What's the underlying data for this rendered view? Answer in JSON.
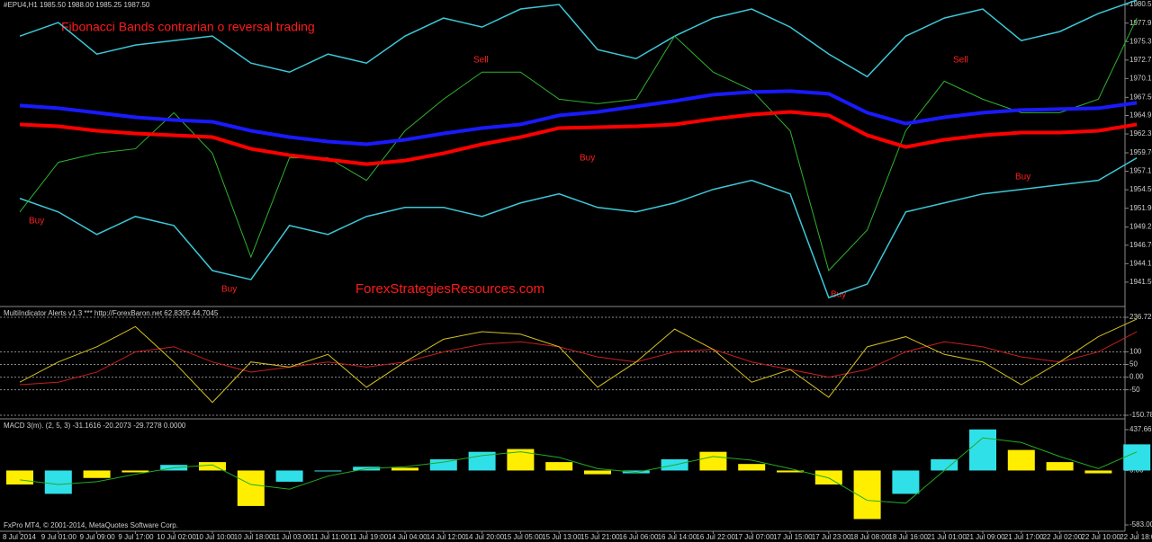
{
  "chart_data": [
    {
      "type": "line",
      "header": "#EPU4,H1  1985.50 1988.00 1985.25 1987.50",
      "title": "Fibonacci Bands contrarian  o reversal trading",
      "watermark": "ForexStrategiesResources.com",
      "annotations": [
        "Buy",
        "Buy",
        "Buy",
        "Buy",
        "Buy",
        "Sell",
        "Sell"
      ],
      "ylim": [
        1938.2,
        1981.2
      ],
      "yticks": [
        1980.55,
        1977.95,
        1975.35,
        1972.75,
        1970.15,
        {
          "value": 1967.5,
          "label": "1967.50"
        },
        1964.95,
        1962.35,
        {
          "value": 1959.7,
          "label": "1959.70"
        },
        1957.1,
        {
          "value": 1954.5,
          "label": "1954.50"
        },
        {
          "value": 1951.9,
          "label": "1951.90"
        },
        1949.25,
        {
          "value": 1946.7,
          "label": "1946.70"
        },
        1944.1,
        {
          "value": 1941.5,
          "label": "1941.50"
        }
      ],
      "series": [
        {
          "color": "#3cc8d8",
          "width": 1.5,
          "values": [
            1976.12,
            1978.03,
            1973.59,
            1974.86,
            1975.49,
            1976.12,
            1972.32,
            1971.05,
            1973.59,
            1972.32,
            1976.12,
            1978.66,
            1977.39,
            1979.93,
            1980.57,
            1974.22,
            1972.95,
            1976.12,
            1978.66,
            1979.93,
            1977.39,
            1973.59,
            1970.41,
            1976.12,
            1978.66,
            1979.93,
            1975.49,
            1976.76,
            1979.3,
            1981.2
          ]
        },
        {
          "color": "#3cc8d8",
          "width": 1.5,
          "values": [
            1953.28,
            1951.38,
            1948.21,
            1950.74,
            1949.47,
            1943.13,
            1941.86,
            1949.47,
            1948.21,
            1950.74,
            1952.01,
            1952.01,
            1950.74,
            1952.65,
            1953.92,
            1952.01,
            1951.38,
            1952.65,
            1954.55,
            1955.82,
            1953.92,
            1939.32,
            1941.23,
            1951.38,
            1952.65,
            1953.92,
            1954.55,
            1955.19,
            1955.82,
            1958.99
          ]
        },
        {
          "color": "#2db32d",
          "width": 1,
          "values": [
            1951.38,
            1958.36,
            1959.63,
            1960.26,
            1965.34,
            1959.63,
            1945.03,
            1958.99,
            1958.99,
            1955.82,
            1962.8,
            1967.24,
            1971.05,
            1971.05,
            1967.24,
            1966.61,
            1967.24,
            1976.12,
            1971.05,
            1968.51,
            1962.8,
            1943.13,
            1948.84,
            1962.8,
            1969.78,
            1967.24,
            1965.34,
            1965.34,
            1967.24,
            1978.66
          ]
        },
        {
          "color": "#1a1aff",
          "width": 4,
          "values": [
            1966.35,
            1965.97,
            1965.34,
            1964.7,
            1964.32,
            1964.07,
            1962.8,
            1961.91,
            1961.28,
            1960.9,
            1961.53,
            1962.42,
            1963.18,
            1963.69,
            1964.96,
            1965.46,
            1966.23,
            1966.99,
            1967.88,
            1968.26,
            1968.38,
            1968,
            1965.34,
            1963.81,
            1964.7,
            1965.34,
            1965.72,
            1965.85,
            1965.97,
            1966.73
          ]
        },
        {
          "color": "#ff0000",
          "width": 4,
          "values": [
            1963.69,
            1963.43,
            1962.8,
            1962.42,
            1962.17,
            1961.91,
            1960.26,
            1959.37,
            1958.74,
            1958.1,
            1958.61,
            1959.63,
            1960.9,
            1961.91,
            1963.18,
            1963.31,
            1963.43,
            1963.69,
            1964.45,
            1965.08,
            1965.46,
            1964.96,
            1962.17,
            1960.52,
            1961.53,
            1962.17,
            1962.55,
            1962.55,
            1962.8,
            1963.69
          ]
        }
      ]
    },
    {
      "type": "line",
      "header": "MultiIndicator Alerts v1.3 *** http://ForexBaron.net 62.8305 44.7045",
      "ylim": [
        -150.789,
        236.7263
      ],
      "yticks": [
        236.7263,
        100,
        50,
        {
          "value": 0,
          "label": "0.00"
        },
        -50,
        -150.789
      ],
      "grid": true,
      "series": [
        {
          "color": "#c81e1e",
          "width": 1,
          "values": [
            -30,
            -20,
            20,
            100,
            120,
            60,
            20,
            40,
            60,
            40,
            60,
            100,
            130,
            140,
            120,
            80,
            60,
            100,
            110,
            60,
            30,
            0,
            30,
            100,
            140,
            120,
            80,
            60,
            100,
            180
          ]
        },
        {
          "color": "#d4c020",
          "width": 1,
          "values": [
            -20,
            60,
            120,
            200,
            60,
            -100,
            60,
            40,
            90,
            -40,
            60,
            150,
            180,
            170,
            120,
            -40,
            60,
            190,
            110,
            -20,
            30,
            -80,
            120,
            160,
            90,
            60,
            -30,
            60,
            160,
            230
          ]
        }
      ]
    },
    {
      "type": "bar",
      "header": "MACD 3(m). (2, 5, 3) -31.1616 -20.2073 -29.7278 0.0000",
      "footer": "FxPro MT4, © 2001-2014, MetaQuotes Software Corp.",
      "ylim": [
        -583.001,
        437.6638
      ],
      "yticks": [
        437.6638,
        {
          "value": 0,
          "label": "0.00"
        },
        -583.001
      ],
      "categories": [
        "8 Jul 2014",
        "9 Jul 01:00",
        "9 Jul 09:00",
        "9 Jul 17:00",
        "10 Jul 02:00",
        "10 Jul 10:00",
        "10 Jul 18:00",
        "11 Jul 03:00",
        "11 Jul 11:00",
        "11 Jul 19:00",
        "14 Jul 04:00",
        "14 Jul 12:00",
        "14 Jul 20:00",
        "15 Jul 05:00",
        "15 Jul 13:00",
        "15 Jul 21:00",
        "16 Jul 06:00",
        "16 Jul 14:00",
        "16 Jul 22:00",
        "17 Jul 07:00",
        "17 Jul 15:00",
        "17 Jul 23:00",
        "18 Jul 08:00",
        "18 Jul 16:00",
        "21 Jul 01:00",
        "21 Jul 09:00",
        "21 Jul 17:00",
        "22 Jul 02:00",
        "22 Jul 10:00",
        "22 Jul 18:00"
      ],
      "values": [
        -150,
        -250,
        -80,
        -20,
        60,
        90,
        -380,
        -120,
        -10,
        40,
        30,
        120,
        200,
        230,
        90,
        -40,
        -30,
        120,
        200,
        70,
        -20,
        -150,
        -520,
        -250,
        120,
        440,
        220,
        90,
        -30,
        280
      ],
      "bar_colors": [
        "#ffee00",
        "#30e0e8",
        "#ffee00",
        "#ffee00",
        "#30e0e8",
        "#ffee00",
        "#ffee00",
        "#30e0e8",
        "#30e0e8",
        "#30e0e8",
        "#ffee00",
        "#30e0e8",
        "#30e0e8",
        "#ffee00",
        "#ffee00",
        "#ffee00",
        "#30e0e8",
        "#30e0e8",
        "#ffee00",
        "#ffee00",
        "#ffee00",
        "#ffee00",
        "#ffee00",
        "#30e0e8",
        "#30e0e8",
        "#30e0e8",
        "#ffee00",
        "#ffee00",
        "#ffee00",
        "#30e0e8"
      ],
      "series": [
        {
          "color": "#22aa22",
          "width": 1,
          "values": [
            -100,
            -150,
            -120,
            -40,
            30,
            60,
            -150,
            -200,
            -60,
            20,
            40,
            90,
            160,
            200,
            140,
            20,
            -20,
            60,
            150,
            110,
            20,
            -80,
            -320,
            -350,
            0,
            350,
            300,
            150,
            20,
            200
          ]
        }
      ]
    }
  ]
}
